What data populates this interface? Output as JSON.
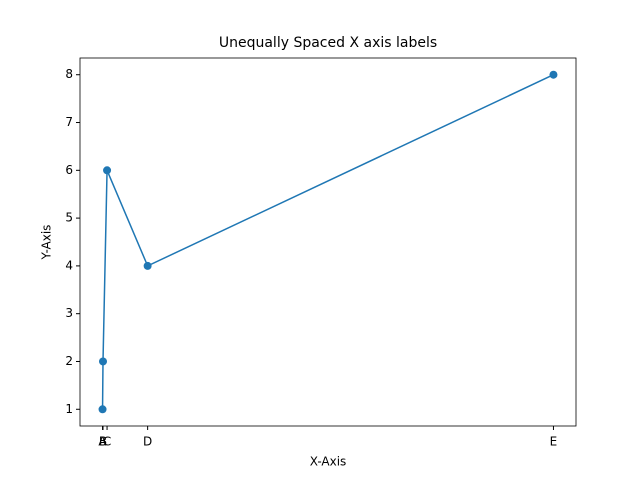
{
  "chart_data": {
    "type": "line",
    "title": "Unequally Spaced X axis labels",
    "x_label": "X-Axis",
    "y_label": "Y-Axis",
    "x": [
      0,
      0.1,
      1,
      10,
      100
    ],
    "series": [
      {
        "color": "#1f77b4",
        "values": [
          1,
          2,
          6,
          4,
          8
        ]
      }
    ],
    "xlim": [
      -5,
      105
    ],
    "ylim": [
      0.65,
      8.35
    ],
    "xticks": [
      {
        "value": 0,
        "label": "A"
      },
      {
        "value": 0.1,
        "label": "B"
      },
      {
        "value": 1,
        "label": "C"
      },
      {
        "value": 10,
        "label": "D"
      },
      {
        "value": 100,
        "label": "E"
      }
    ],
    "yticks": [
      1,
      2,
      3,
      4,
      5,
      6,
      7,
      8
    ]
  }
}
